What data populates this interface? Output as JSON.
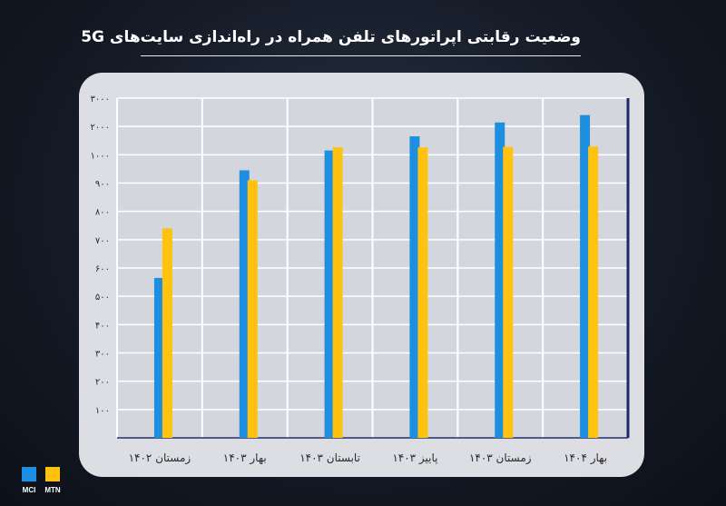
{
  "header": {
    "title": "وضعیت رقابتی اپراتورهای تلفن همراه در راه‌اندازی سایت‌های 5G"
  },
  "colors": {
    "mci": "#1e8fe0",
    "mtn": "#ffc20e",
    "grid": "#ffffff",
    "axis": "#1d2a66",
    "text": "#2b2b2b"
  },
  "legend": {
    "mci": {
      "label": "MCI",
      "icon": "blue-square"
    },
    "mtn": {
      "label": "MTN",
      "icon": "yellow-square"
    }
  },
  "chart_data": {
    "type": "bar",
    "title": "وضعیت رقابتی اپراتورهای تلفن همراه در راه‌اندازی سایت‌های 5G",
    "categories": [
      "زمستان ۱۴۰۲",
      "بهار ۱۴۰۳",
      "تابستان ۱۴۰۳",
      "پاییز ۱۴۰۳",
      "زمستان ۱۴۰۳",
      "بهار ۱۴۰۴"
    ],
    "category_order": "right-to-left",
    "y_ticks": [
      "۱۰۰",
      "۲۰۰",
      "۳۰۰",
      "۴۰۰",
      "۵۰۰",
      "۶۰۰",
      "۷۰۰",
      "۸۰۰",
      "۹۰۰",
      "۱۰۰۰",
      "۲۰۰۰",
      "۳۰۰۰"
    ],
    "y_scale": "piecewise: 0–1000 linear step 100, then 1000 → 2000 → 3000 at equal tick spacing",
    "series": [
      {
        "name": "MCI",
        "values": [
          565,
          945,
          1150,
          1650,
          2140,
          2400
        ]
      },
      {
        "name": "MTN",
        "values": [
          740,
          910,
          1260,
          1260,
          1280,
          1290
        ]
      }
    ],
    "grid": true,
    "legend_position": "bottom-left"
  }
}
